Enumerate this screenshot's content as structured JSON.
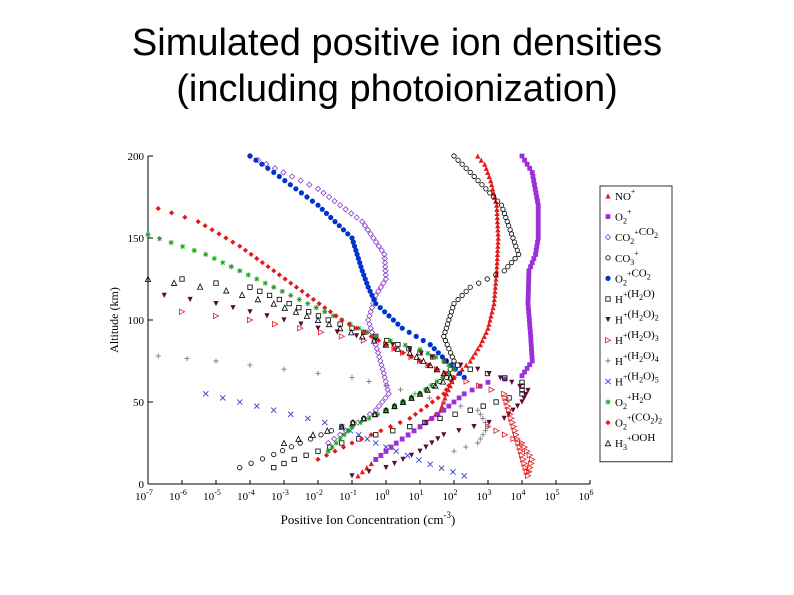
{
  "slide": {
    "title_line1": "Simulated positive ion densities",
    "title_line2": "(including photoionization)"
  },
  "chart_data": {
    "type": "scatter",
    "title": "",
    "xlabel": "Positive Ion Concentration (cm",
    "xlabel_sup": "-3",
    "xlabel_end": ")",
    "ylabel": "Altitude (km)",
    "xscale": "log",
    "xlim": [
      1e-07,
      1000000.0
    ],
    "ylim": [
      0,
      200
    ],
    "x_tick_exponents": [
      -7,
      -6,
      -5,
      -4,
      -3,
      -2,
      -1,
      0,
      1,
      2,
      3,
      4,
      5,
      6
    ],
    "x_tick_base": "10",
    "y_ticks": [
      "0",
      "50",
      "100",
      "150",
      "200"
    ],
    "grid": false,
    "legend_placement": "right",
    "series": [
      {
        "name": "NO",
        "sup": "+",
        "marker": "triangle",
        "color": "#e31a1c",
        "points": [
          [
            0.15,
            5
          ],
          [
            0.5,
            15
          ],
          [
            2,
            25
          ],
          [
            10,
            35
          ],
          [
            40,
            45
          ],
          [
            60,
            55
          ],
          [
            100,
            65
          ],
          [
            300,
            75
          ],
          [
            600,
            85
          ],
          [
            1000,
            95
          ],
          [
            1500,
            110
          ],
          [
            1800,
            130
          ],
          [
            2000,
            150
          ],
          [
            1800,
            170
          ],
          [
            1200,
            185
          ],
          [
            800,
            195
          ],
          [
            500,
            200
          ]
        ]
      },
      {
        "name": "O",
        "sub": "2",
        "sup": "+",
        "marker": "square",
        "color": "#9b30d9",
        "points": [
          [
            0.5,
            15
          ],
          [
            2,
            25
          ],
          [
            10,
            35
          ],
          [
            50,
            45
          ],
          [
            200,
            55
          ],
          [
            1000,
            62
          ],
          [
            10000,
            66
          ],
          [
            20000,
            75
          ],
          [
            18000,
            90
          ],
          [
            15000,
            110
          ],
          [
            16000,
            130
          ],
          [
            25000,
            140
          ],
          [
            30000,
            150
          ],
          [
            30000,
            170
          ],
          [
            20000,
            190
          ],
          [
            10000,
            200
          ]
        ]
      },
      {
        "name": "CO",
        "sub": "2",
        "sup": "+",
        "extra": "CO",
        "extra_sub": "2",
        "marker": "diamond_open",
        "color": "#8a3fd0",
        "points": [
          [
            0.02,
            25
          ],
          [
            0.1,
            35
          ],
          [
            0.5,
            45
          ],
          [
            1.2,
            55
          ],
          [
            0.8,
            70
          ],
          [
            0.5,
            85
          ],
          [
            0.3,
            100
          ],
          [
            0.5,
            115
          ],
          [
            1,
            125
          ],
          [
            0.9,
            140
          ],
          [
            0.2,
            160
          ],
          [
            0.01,
            180
          ],
          [
            0.0003,
            195
          ],
          [
            0.0001,
            200
          ]
        ]
      },
      {
        "name": "CO",
        "sub": "3",
        "sup": "+",
        "marker": "circle_open",
        "color": "#000000",
        "points": [
          [
            5e-05,
            10
          ],
          [
            0.0005,
            18
          ],
          [
            0.003,
            25
          ],
          [
            0.05,
            35
          ],
          [
            1,
            45
          ],
          [
            10,
            55
          ],
          [
            60,
            65
          ],
          [
            100,
            75
          ],
          [
            50,
            90
          ],
          [
            100,
            110
          ],
          [
            300,
            120
          ],
          [
            3000,
            130
          ],
          [
            8000,
            140
          ],
          [
            2500,
            170
          ],
          [
            300,
            190
          ],
          [
            100,
            200
          ]
        ]
      },
      {
        "name": "O",
        "sub": "2",
        "sup": "+",
        "extra": "CO",
        "extra_sub": "2",
        "marker": "circle_filled",
        "color": "#0033cc",
        "points": [
          [
            200,
            65
          ],
          [
            60,
            75
          ],
          [
            20,
            85
          ],
          [
            3,
            95
          ],
          [
            0.5,
            110
          ],
          [
            0.3,
            120
          ],
          [
            0.2,
            130
          ],
          [
            0.1,
            150
          ],
          [
            0.01,
            170
          ],
          [
            0.0005,
            190
          ],
          [
            0.0001,
            200
          ]
        ]
      },
      {
        "name": "H",
        "sup": "+",
        "extra": "(H",
        "extra_sub": "2",
        "extra_end": "O)",
        "marker": "square_open",
        "color": "#000000",
        "points": [
          [
            0.0005,
            10
          ],
          [
            0.002,
            15
          ],
          [
            0.05,
            25
          ],
          [
            0.5,
            30
          ],
          [
            5,
            35
          ],
          [
            300,
            45
          ],
          [
            10000,
            55
          ],
          [
            10000,
            62
          ],
          [
            300,
            70
          ],
          [
            10,
            80
          ],
          [
            0.5,
            90
          ],
          [
            0.02,
            100
          ],
          [
            0.0001,
            120
          ],
          [
            1e-06,
            125
          ]
        ]
      },
      {
        "name": "H",
        "sup": "+",
        "extra": "(H",
        "extra_sub": "2",
        "extra_end": "O)",
        "extra_sub2": "2",
        "marker": "triangle_down",
        "color": "#5c0a36",
        "points": [
          [
            0.1,
            5
          ],
          [
            1,
            10
          ],
          [
            10,
            20
          ],
          [
            50,
            30
          ],
          [
            3000,
            40
          ],
          [
            10000,
            50
          ],
          [
            15000,
            57
          ],
          [
            5000,
            62
          ],
          [
            500,
            70
          ],
          [
            50,
            75
          ],
          [
            5,
            82
          ],
          [
            0.5,
            88
          ],
          [
            0.01,
            95
          ],
          [
            0.0001,
            105
          ],
          [
            1e-05,
            110
          ],
          [
            3e-07,
            115
          ]
        ]
      },
      {
        "name": "H",
        "sup": "+",
        "extra": "(H",
        "extra_sub": "2",
        "extra_end": "O)",
        "extra_sub2": "3",
        "marker": "triangle_right_open",
        "color": "#e31a1c",
        "points": [
          [
            1000,
            35
          ],
          [
            10000,
            25
          ],
          [
            20000,
            15
          ],
          [
            15000,
            5
          ],
          [
            3000,
            55
          ],
          [
            100,
            65
          ],
          [
            10,
            75
          ],
          [
            1,
            85
          ],
          [
            0.05,
            90
          ],
          [
            0.003,
            95
          ],
          [
            0.0001,
            100
          ],
          [
            1e-06,
            105
          ]
        ]
      },
      {
        "name": "H",
        "sup": "+",
        "extra": "(H",
        "extra_sub": "2",
        "extra_end": "O)",
        "extra_sub2": "4",
        "marker": "plus",
        "color": "#7a7a7a",
        "points": [
          [
            100,
            20
          ],
          [
            500,
            25
          ],
          [
            1000,
            35
          ],
          [
            500,
            45
          ],
          [
            50,
            50
          ],
          [
            1,
            60
          ],
          [
            0.1,
            65
          ],
          [
            0.001,
            70
          ],
          [
            1e-05,
            75
          ],
          [
            2e-07,
            78
          ]
        ]
      },
      {
        "name": "H",
        "sup": "+",
        "extra": "(H",
        "extra_sub": "2",
        "extra_end": "O)",
        "extra_sub2": "5",
        "marker": "x",
        "color": "#3344cc",
        "points": [
          [
            200,
            5
          ],
          [
            20,
            12
          ],
          [
            2,
            20
          ],
          [
            0.5,
            25
          ],
          [
            0.05,
            35
          ],
          [
            0.005,
            40
          ],
          [
            0.0005,
            45
          ],
          [
            5e-05,
            50
          ],
          [
            5e-06,
            55
          ]
        ]
      },
      {
        "name": "O",
        "sub": "2",
        "sup": "+",
        "extra": "H",
        "extra_sub": "2",
        "extra_end": "O",
        "marker": "star",
        "color": "#1a9a1a",
        "points": [
          [
            0.02,
            20
          ],
          [
            0.1,
            35
          ],
          [
            1,
            45
          ],
          [
            10,
            55
          ],
          [
            100,
            70
          ],
          [
            50,
            75
          ],
          [
            10,
            82
          ],
          [
            0.5,
            90
          ],
          [
            0.05,
            100
          ],
          [
            0.005,
            110
          ],
          [
            0.0005,
            120
          ],
          [
            5e-05,
            130
          ],
          [
            5e-06,
            140
          ],
          [
            1e-07,
            152
          ]
        ]
      },
      {
        "name": "O",
        "sub": "2",
        "sup": "+",
        "extra": "(CO",
        "extra_sub": "2",
        "extra_end": ")",
        "extra_sub2": "2",
        "marker": "diamond_filled",
        "color": "#e31a1c",
        "points": [
          [
            0.01,
            15
          ],
          [
            0.1,
            25
          ],
          [
            5,
            40
          ],
          [
            50,
            55
          ],
          [
            100,
            65
          ],
          [
            10,
            75
          ],
          [
            1,
            85
          ],
          [
            0.05,
            100
          ],
          [
            0.005,
            115
          ],
          [
            0.0005,
            130
          ],
          [
            5e-05,
            145
          ],
          [
            3e-06,
            160
          ],
          [
            2e-07,
            168
          ]
        ]
      },
      {
        "name": "H",
        "sub": "3",
        "sup": "+",
        "extra": "O",
        "extra_sub": "",
        "extra_end": "OH",
        "marker": "triangle_open",
        "color": "#000000",
        "points": [
          [
            0.001,
            25
          ],
          [
            0.05,
            35
          ],
          [
            1,
            45
          ],
          [
            10,
            55
          ],
          [
            80,
            65
          ],
          [
            5,
            80
          ],
          [
            0.2,
            90
          ],
          [
            0.01,
            100
          ],
          [
            0.0005,
            110
          ],
          [
            2e-05,
            118
          ],
          [
            1e-07,
            125
          ]
        ]
      }
    ]
  }
}
